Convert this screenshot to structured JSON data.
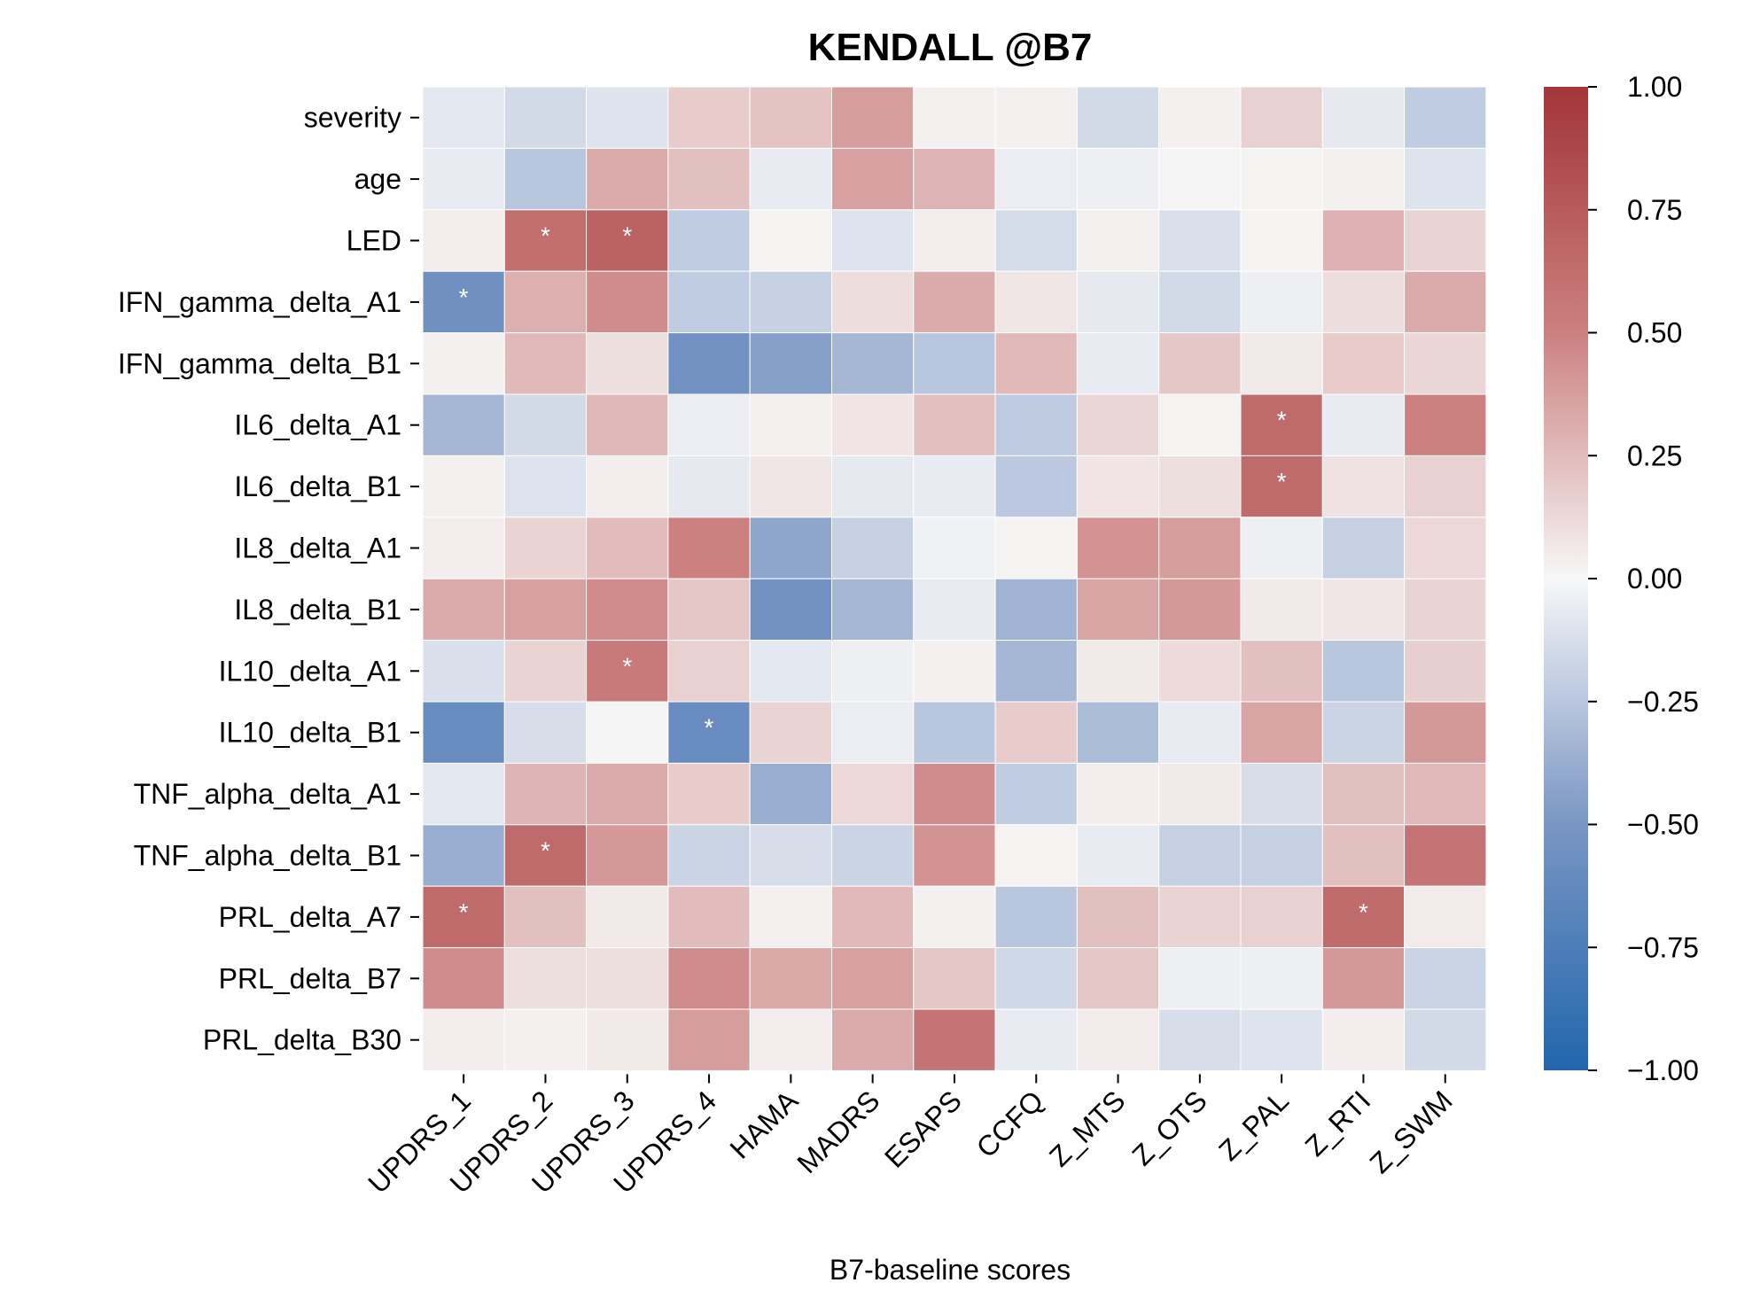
{
  "chart_data": {
    "type": "heatmap",
    "title": "KENDALL @B7",
    "xlabel": "B7-baseline scores",
    "ylabel": "",
    "x_categories": [
      "UPDRS_1",
      "UPDRS_2",
      "UPDRS_3",
      "UPDRS_4",
      "HAMA",
      "MADRS",
      "ESAPS",
      "CCFQ",
      "Z_MTS",
      "Z_OTS",
      "Z_PAL",
      "Z_RTI",
      "Z_SWM"
    ],
    "y_categories": [
      "severity",
      "age",
      "LED",
      "IFN_gamma_delta_A1",
      "IFN_gamma_delta_B1",
      "IL6_delta_A1",
      "IL6_delta_B1",
      "IL8_delta_A1",
      "IL8_delta_B1",
      "IL10_delta_A1",
      "IL10_delta_B1",
      "TNF_alpha_delta_A1",
      "TNF_alpha_delta_B1",
      "PRL_delta_A7",
      "PRL_delta_B7",
      "PRL_delta_B30"
    ],
    "values": [
      [
        -0.08,
        -0.15,
        -0.1,
        0.18,
        0.22,
        0.38,
        0.03,
        0.03,
        -0.15,
        0.03,
        0.16,
        -0.07,
        -0.22
      ],
      [
        -0.06,
        -0.25,
        0.32,
        0.23,
        -0.06,
        0.36,
        0.28,
        -0.05,
        -0.04,
        0.01,
        0.02,
        0.03,
        -0.1
      ],
      [
        0.04,
        0.62,
        0.7,
        -0.22,
        0.02,
        -0.1,
        0.04,
        -0.14,
        0.03,
        -0.12,
        0.02,
        0.29,
        0.15
      ],
      [
        -0.56,
        0.3,
        0.45,
        -0.22,
        -0.2,
        0.11,
        0.32,
        0.07,
        -0.07,
        -0.15,
        -0.04,
        0.11,
        0.32
      ],
      [
        0.03,
        0.26,
        0.1,
        -0.55,
        -0.45,
        -0.33,
        -0.25,
        0.26,
        -0.06,
        0.2,
        0.06,
        0.18,
        0.14
      ],
      [
        -0.33,
        -0.15,
        0.27,
        -0.05,
        0.03,
        0.08,
        0.24,
        -0.23,
        0.14,
        0.02,
        0.65,
        -0.06,
        0.5
      ],
      [
        0.03,
        -0.1,
        0.04,
        -0.07,
        0.07,
        -0.07,
        -0.06,
        -0.24,
        0.08,
        0.1,
        0.65,
        0.09,
        0.16
      ],
      [
        0.04,
        0.15,
        0.25,
        0.5,
        -0.42,
        -0.2,
        -0.03,
        0.02,
        0.42,
        0.38,
        -0.04,
        -0.2,
        0.13
      ],
      [
        0.32,
        0.36,
        0.45,
        0.2,
        -0.55,
        -0.33,
        -0.06,
        -0.35,
        0.35,
        0.4,
        0.06,
        0.07,
        0.15
      ],
      [
        -0.12,
        0.15,
        0.55,
        0.16,
        -0.08,
        -0.04,
        0.03,
        -0.33,
        0.06,
        0.12,
        0.23,
        -0.25,
        0.17
      ],
      [
        -0.6,
        -0.13,
        0.01,
        -0.6,
        0.15,
        -0.05,
        -0.25,
        0.18,
        -0.3,
        -0.06,
        0.35,
        -0.18,
        0.4
      ],
      [
        -0.08,
        0.28,
        0.32,
        0.18,
        -0.38,
        0.13,
        0.45,
        -0.22,
        0.04,
        0.06,
        -0.13,
        0.23,
        0.26
      ],
      [
        -0.38,
        0.65,
        0.4,
        -0.18,
        -0.13,
        -0.18,
        0.42,
        0.02,
        -0.06,
        -0.2,
        -0.2,
        0.23,
        0.58
      ],
      [
        0.65,
        0.23,
        0.06,
        0.25,
        0.03,
        0.26,
        0.03,
        -0.25,
        0.23,
        0.15,
        0.16,
        0.65,
        0.05
      ],
      [
        0.45,
        0.1,
        0.1,
        0.45,
        0.33,
        0.36,
        0.2,
        -0.16,
        0.2,
        -0.04,
        -0.04,
        0.4,
        -0.18
      ],
      [
        0.04,
        0.03,
        0.06,
        0.38,
        0.04,
        0.32,
        0.58,
        -0.06,
        0.05,
        -0.13,
        -0.1,
        0.04,
        -0.15
      ]
    ],
    "significance_marker": "*",
    "significant_cells": [
      [
        2,
        1
      ],
      [
        2,
        2
      ],
      [
        3,
        0
      ],
      [
        5,
        10
      ],
      [
        6,
        10
      ],
      [
        9,
        2
      ],
      [
        10,
        3
      ],
      [
        12,
        1
      ],
      [
        13,
        0
      ],
      [
        13,
        11
      ]
    ],
    "colorbar": {
      "range": [
        -1.0,
        1.0
      ],
      "ticks": [
        "1.00",
        "0.75",
        "0.50",
        "0.25",
        "0.00",
        "−0.25",
        "−0.50",
        "−0.75",
        "−1.00"
      ],
      "colors": {
        "low": "#2166ac",
        "mid": "#f7f7f7",
        "high": "#a2353a"
      }
    },
    "grid_lines": "white"
  }
}
